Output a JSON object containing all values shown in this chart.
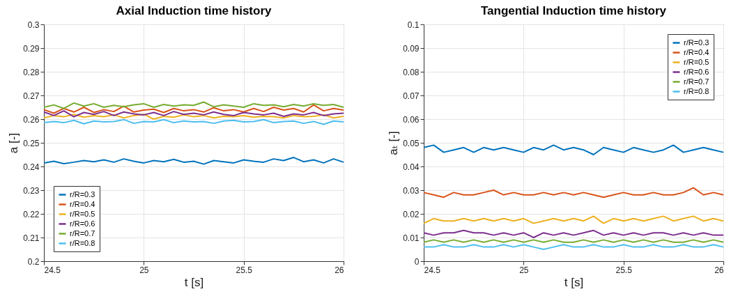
{
  "chart_data": [
    {
      "type": "line",
      "title": "Axial Induction time history",
      "xlabel": "t [s]",
      "ylabel": "a [-]",
      "x": [
        24.5,
        24.55,
        24.6,
        24.65,
        24.7,
        24.75,
        24.8,
        24.85,
        24.9,
        24.95,
        25,
        25.05,
        25.1,
        25.15,
        25.2,
        25.25,
        25.3,
        25.35,
        25.4,
        25.45,
        25.5,
        25.55,
        25.6,
        25.65,
        25.7,
        25.75,
        25.8,
        25.85,
        25.9,
        25.95,
        26
      ],
      "xlim": [
        24.5,
        26
      ],
      "xticks": [
        24.5,
        25,
        25.5,
        26
      ],
      "ylim": [
        0.2,
        0.3
      ],
      "yticks": [
        0.2,
        0.21,
        0.22,
        0.23,
        0.24,
        0.25,
        0.26,
        0.27,
        0.28,
        0.29,
        0.3
      ],
      "grid": true,
      "legend": "bottom left",
      "series": [
        {
          "name": "r/R=0.3",
          "color": "#0072bd",
          "values": [
            0.2415,
            0.2422,
            0.2412,
            0.2418,
            0.2425,
            0.242,
            0.2428,
            0.2418,
            0.2432,
            0.2422,
            0.2415,
            0.2425,
            0.242,
            0.243,
            0.2418,
            0.2422,
            0.241,
            0.2425,
            0.242,
            0.2415,
            0.2428,
            0.2422,
            0.2418,
            0.2432,
            0.2425,
            0.2438,
            0.242,
            0.2428,
            0.2415,
            0.2432,
            0.2418
          ]
        },
        {
          "name": "r/R=0.4",
          "color": "#d95319",
          "values": [
            0.264,
            0.2625,
            0.2645,
            0.263,
            0.265,
            0.2628,
            0.264,
            0.2632,
            0.2655,
            0.263,
            0.2638,
            0.2642,
            0.2628,
            0.2645,
            0.2635,
            0.264,
            0.263,
            0.2648,
            0.2635,
            0.264,
            0.263,
            0.2645,
            0.2632,
            0.265,
            0.2638,
            0.2645,
            0.263,
            0.266,
            0.2635,
            0.2645,
            0.2638
          ]
        },
        {
          "name": "r/R=0.5",
          "color": "#edb120",
          "values": [
            0.2605,
            0.2615,
            0.261,
            0.262,
            0.2608,
            0.2615,
            0.261,
            0.2618,
            0.2605,
            0.2615,
            0.262,
            0.26,
            0.2612,
            0.2608,
            0.2618,
            0.261,
            0.2615,
            0.2605,
            0.2612,
            0.261,
            0.2615,
            0.2608,
            0.2612,
            0.261,
            0.2605,
            0.2615,
            0.261,
            0.2612,
            0.2618,
            0.2605,
            0.2612
          ]
        },
        {
          "name": "r/R=0.6",
          "color": "#7e2f8e",
          "values": [
            0.263,
            0.2615,
            0.2635,
            0.261,
            0.2628,
            0.262,
            0.2632,
            0.2615,
            0.263,
            0.2622,
            0.2618,
            0.2628,
            0.2615,
            0.2632,
            0.262,
            0.2625,
            0.2618,
            0.263,
            0.262,
            0.2615,
            0.2628,
            0.2622,
            0.2618,
            0.2625,
            0.2612,
            0.2622,
            0.2618,
            0.2628,
            0.2615,
            0.2622,
            0.2625
          ]
        },
        {
          "name": "r/R=0.7",
          "color": "#77ac30",
          "values": [
            0.265,
            0.266,
            0.2645,
            0.2668,
            0.2655,
            0.2665,
            0.265,
            0.2658,
            0.2652,
            0.266,
            0.2665,
            0.265,
            0.2662,
            0.2655,
            0.266,
            0.2658,
            0.2672,
            0.2652,
            0.266,
            0.2655,
            0.265,
            0.2665,
            0.2658,
            0.266,
            0.2652,
            0.2662,
            0.2655,
            0.2665,
            0.2658,
            0.2662,
            0.265
          ]
        },
        {
          "name": "r/R=0.8",
          "color": "#4dbeee",
          "values": [
            0.2585,
            0.259,
            0.2585,
            0.2595,
            0.258,
            0.2592,
            0.2588,
            0.259,
            0.2598,
            0.2582,
            0.259,
            0.2588,
            0.2598,
            0.2585,
            0.2592,
            0.2588,
            0.259,
            0.2582,
            0.2592,
            0.2595,
            0.2588,
            0.259,
            0.2598,
            0.2585,
            0.259,
            0.2592,
            0.2582,
            0.259,
            0.2578,
            0.2592,
            0.2588
          ]
        }
      ]
    },
    {
      "type": "line",
      "title": "Tangential Induction time history",
      "xlabel": "t [s]",
      "ylabel": "aₜ [-]",
      "x": [
        24.5,
        24.55,
        24.6,
        24.65,
        24.7,
        24.75,
        24.8,
        24.85,
        24.9,
        24.95,
        25,
        25.05,
        25.1,
        25.15,
        25.2,
        25.25,
        25.3,
        25.35,
        25.4,
        25.45,
        25.5,
        25.55,
        25.6,
        25.65,
        25.7,
        25.75,
        25.8,
        25.85,
        25.9,
        25.95,
        26
      ],
      "xlim": [
        24.5,
        26
      ],
      "xticks": [
        24.5,
        25,
        25.5,
        26
      ],
      "ylim": [
        0,
        0.1
      ],
      "yticks": [
        0,
        0.01,
        0.02,
        0.03,
        0.04,
        0.05,
        0.06,
        0.07,
        0.08,
        0.09,
        0.1
      ],
      "grid": true,
      "legend": "top right",
      "series": [
        {
          "name": "r/R=0.3",
          "color": "#0072bd",
          "values": [
            0.048,
            0.049,
            0.046,
            0.047,
            0.048,
            0.046,
            0.048,
            0.047,
            0.048,
            0.047,
            0.046,
            0.048,
            0.047,
            0.049,
            0.047,
            0.048,
            0.047,
            0.045,
            0.048,
            0.047,
            0.046,
            0.048,
            0.047,
            0.046,
            0.047,
            0.049,
            0.046,
            0.047,
            0.048,
            0.047,
            0.046
          ]
        },
        {
          "name": "r/R=0.4",
          "color": "#d95319",
          "values": [
            0.029,
            0.028,
            0.027,
            0.029,
            0.028,
            0.028,
            0.029,
            0.03,
            0.028,
            0.029,
            0.028,
            0.028,
            0.029,
            0.028,
            0.029,
            0.028,
            0.029,
            0.028,
            0.027,
            0.028,
            0.029,
            0.028,
            0.028,
            0.029,
            0.028,
            0.028,
            0.029,
            0.031,
            0.028,
            0.029,
            0.028
          ]
        },
        {
          "name": "r/R=0.5",
          "color": "#edb120",
          "values": [
            0.016,
            0.018,
            0.017,
            0.017,
            0.018,
            0.017,
            0.018,
            0.017,
            0.018,
            0.017,
            0.018,
            0.016,
            0.017,
            0.018,
            0.017,
            0.018,
            0.017,
            0.019,
            0.016,
            0.018,
            0.017,
            0.018,
            0.017,
            0.018,
            0.019,
            0.017,
            0.018,
            0.019,
            0.017,
            0.018,
            0.017
          ]
        },
        {
          "name": "r/R=0.6",
          "color": "#7e2f8e",
          "values": [
            0.012,
            0.011,
            0.012,
            0.012,
            0.013,
            0.012,
            0.012,
            0.011,
            0.012,
            0.011,
            0.012,
            0.01,
            0.012,
            0.011,
            0.012,
            0.011,
            0.012,
            0.013,
            0.011,
            0.012,
            0.011,
            0.012,
            0.011,
            0.012,
            0.012,
            0.011,
            0.012,
            0.011,
            0.012,
            0.011,
            0.011
          ]
        },
        {
          "name": "r/R=0.7",
          "color": "#77ac30",
          "values": [
            0.008,
            0.009,
            0.008,
            0.009,
            0.008,
            0.009,
            0.008,
            0.009,
            0.008,
            0.009,
            0.008,
            0.009,
            0.008,
            0.009,
            0.008,
            0.008,
            0.009,
            0.008,
            0.009,
            0.008,
            0.009,
            0.008,
            0.009,
            0.008,
            0.009,
            0.008,
            0.008,
            0.009,
            0.008,
            0.009,
            0.008
          ]
        },
        {
          "name": "r/R=0.8",
          "color": "#4dbeee",
          "values": [
            0.006,
            0.006,
            0.007,
            0.006,
            0.006,
            0.007,
            0.006,
            0.006,
            0.007,
            0.006,
            0.007,
            0.006,
            0.005,
            0.006,
            0.007,
            0.006,
            0.006,
            0.007,
            0.006,
            0.006,
            0.007,
            0.006,
            0.006,
            0.007,
            0.006,
            0.006,
            0.007,
            0.006,
            0.006,
            0.007,
            0.006
          ]
        }
      ]
    }
  ]
}
